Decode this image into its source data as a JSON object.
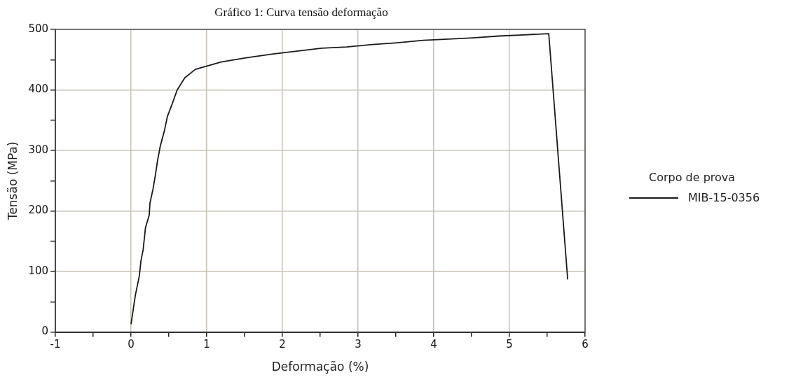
{
  "chart_data": {
    "type": "line",
    "title": "Gráfico 1: Curva tensão deformação",
    "xlabel": "Deformação (%)",
    "ylabel": "Tensão (MPa)",
    "legend_title": "Corpo de prova",
    "xlim": [
      -1,
      6
    ],
    "xticks": [
      -1,
      {
        "value": -0.5,
        "label": null
      },
      0,
      {
        "value": 0.5,
        "label": null
      },
      1,
      {
        "value": 1.5,
        "label": null
      },
      2,
      {
        "value": 2.5,
        "label": null
      },
      3,
      {
        "value": 3.5,
        "label": null
      },
      4,
      {
        "value": 4.5,
        "label": null
      },
      5,
      {
        "value": 5.5,
        "label": null
      },
      6
    ],
    "ylim": [
      0,
      500
    ],
    "yticks": [
      0,
      {
        "value": 50,
        "label": null
      },
      100,
      {
        "value": 150,
        "label": null
      },
      200,
      {
        "value": 250,
        "label": null
      },
      300,
      {
        "value": 350,
        "label": null
      },
      400,
      {
        "value": 450,
        "label": null
      },
      500
    ],
    "grid": true,
    "legend": "right",
    "marker": "none",
    "line_style": "solid",
    "series": [
      {
        "name": "MIB-15-0356",
        "color": "#1a1a1a",
        "x": [
          0,
          0.057,
          0.11,
          0.13,
          0.16,
          0.19,
          0.24,
          0.25,
          0.29,
          0.32,
          0.35,
          0.386,
          0.44,
          0.48,
          0.544,
          0.61,
          0.71,
          0.85,
          1.19,
          1.52,
          1.86,
          2.19,
          2.52,
          2.85,
          3.19,
          3.52,
          3.86,
          4.19,
          4.52,
          4.86,
          5.19,
          5.52,
          5.77
        ],
        "values": [
          13,
          61,
          93,
          117,
          136,
          172,
          193,
          213,
          236,
          258,
          283,
          307,
          332,
          356,
          377,
          400,
          420,
          434,
          446,
          453,
          459,
          464,
          469,
          471,
          475,
          478,
          482,
          484,
          486,
          489,
          491,
          493,
          87
        ]
      }
    ]
  }
}
